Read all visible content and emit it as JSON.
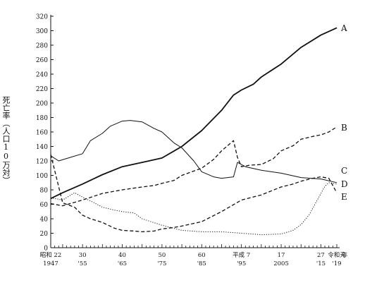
{
  "chart_data": {
    "type": "line",
    "ylabel": "死亡率（人口10万対）",
    "ylim": [
      0,
      320
    ],
    "yticks": [
      0,
      20,
      40,
      60,
      80,
      100,
      120,
      140,
      160,
      180,
      200,
      220,
      240,
      260,
      280,
      300,
      320
    ],
    "xlim": [
      1947,
      2019
    ],
    "xticks": [
      {
        "year": 1947,
        "label1": "昭和 22",
        "label2": "1947"
      },
      {
        "year": 1955,
        "label1": "30",
        "label2": "'55"
      },
      {
        "year": 1965,
        "label1": "40",
        "label2": "'65"
      },
      {
        "year": 1975,
        "label1": "50",
        "label2": "'75"
      },
      {
        "year": 1985,
        "label1": "60",
        "label2": "'85"
      },
      {
        "year": 1995,
        "label1": "平成 7",
        "label2": "'95"
      },
      {
        "year": 2005,
        "label1": "17",
        "label2": "2005"
      },
      {
        "year": 2015,
        "label1": "27",
        "label2": "'15"
      },
      {
        "year": 2019,
        "label1": "令和元",
        "label2": "'19"
      }
    ],
    "x_axis_suffix": "年",
    "grid": false,
    "series": [
      {
        "name": "A",
        "style": "solid-thick",
        "x": [
          1947,
          1950,
          1955,
          1960,
          1965,
          1970,
          1975,
          1980,
          1985,
          1990,
          1993,
          1995,
          1998,
          2000,
          2005,
          2010,
          2015,
          2019
        ],
        "y": [
          68,
          76,
          88,
          101,
          112,
          118,
          124,
          140,
          162,
          190,
          211,
          218,
          226,
          236,
          254,
          277,
          294,
          304
        ]
      },
      {
        "name": "B",
        "style": "dashed",
        "x": [
          1947,
          1950,
          1955,
          1960,
          1965,
          1970,
          1973,
          1975,
          1978,
          1980,
          1983,
          1985,
          1988,
          1990,
          1993,
          1994,
          1995,
          1997,
          2000,
          2003,
          2005,
          2008,
          2010,
          2013,
          2015,
          2017,
          2019
        ],
        "y": [
          61,
          58,
          66,
          75,
          80,
          84,
          86,
          89,
          93,
          100,
          106,
          110,
          122,
          134,
          148,
          125,
          112,
          114,
          115,
          123,
          134,
          141,
          150,
          154,
          156,
          160,
          167
        ]
      },
      {
        "name": "C",
        "style": "solid-thin",
        "x": [
          1947,
          1949,
          1952,
          1955,
          1957,
          1960,
          1962,
          1965,
          1967,
          1970,
          1973,
          1975,
          1978,
          1980,
          1983,
          1985,
          1988,
          1990,
          1993,
          1994,
          1996,
          2000,
          2005,
          2010,
          2015,
          2019
        ],
        "y": [
          127,
          120,
          125,
          130,
          148,
          158,
          168,
          175,
          176,
          174,
          165,
          160,
          145,
          138,
          120,
          105,
          98,
          96,
          98,
          118,
          112,
          107,
          103,
          97,
          95,
          90
        ]
      },
      {
        "name": "D",
        "style": "dotted",
        "x": [
          1947,
          1950,
          1953,
          1955,
          1958,
          1960,
          1963,
          1965,
          1968,
          1970,
          1975,
          1980,
          1985,
          1990,
          1995,
          2000,
          2005,
          2008,
          2010,
          2012,
          2014,
          2016,
          2017,
          2019
        ],
        "y": [
          69,
          66,
          76,
          70,
          62,
          56,
          52,
          50,
          48,
          40,
          31,
          24,
          22,
          22,
          20,
          18,
          19,
          24,
          32,
          45,
          65,
          85,
          90,
          88
        ]
      },
      {
        "name": "E",
        "style": "dashed",
        "x": [
          1947,
          1950,
          1953,
          1955,
          1957,
          1960,
          1963,
          1965,
          1968,
          1970,
          1973,
          1975,
          1978,
          1980,
          1985,
          1990,
          1995,
          2000,
          2005,
          2008,
          2010,
          2013,
          2015,
          2017,
          2019
        ],
        "y": [
          129,
          62,
          56,
          45,
          40,
          35,
          27,
          24,
          23,
          22,
          23,
          26,
          28,
          30,
          36,
          50,
          66,
          73,
          84,
          88,
          92,
          96,
          98,
          96,
          76
        ]
      }
    ]
  }
}
